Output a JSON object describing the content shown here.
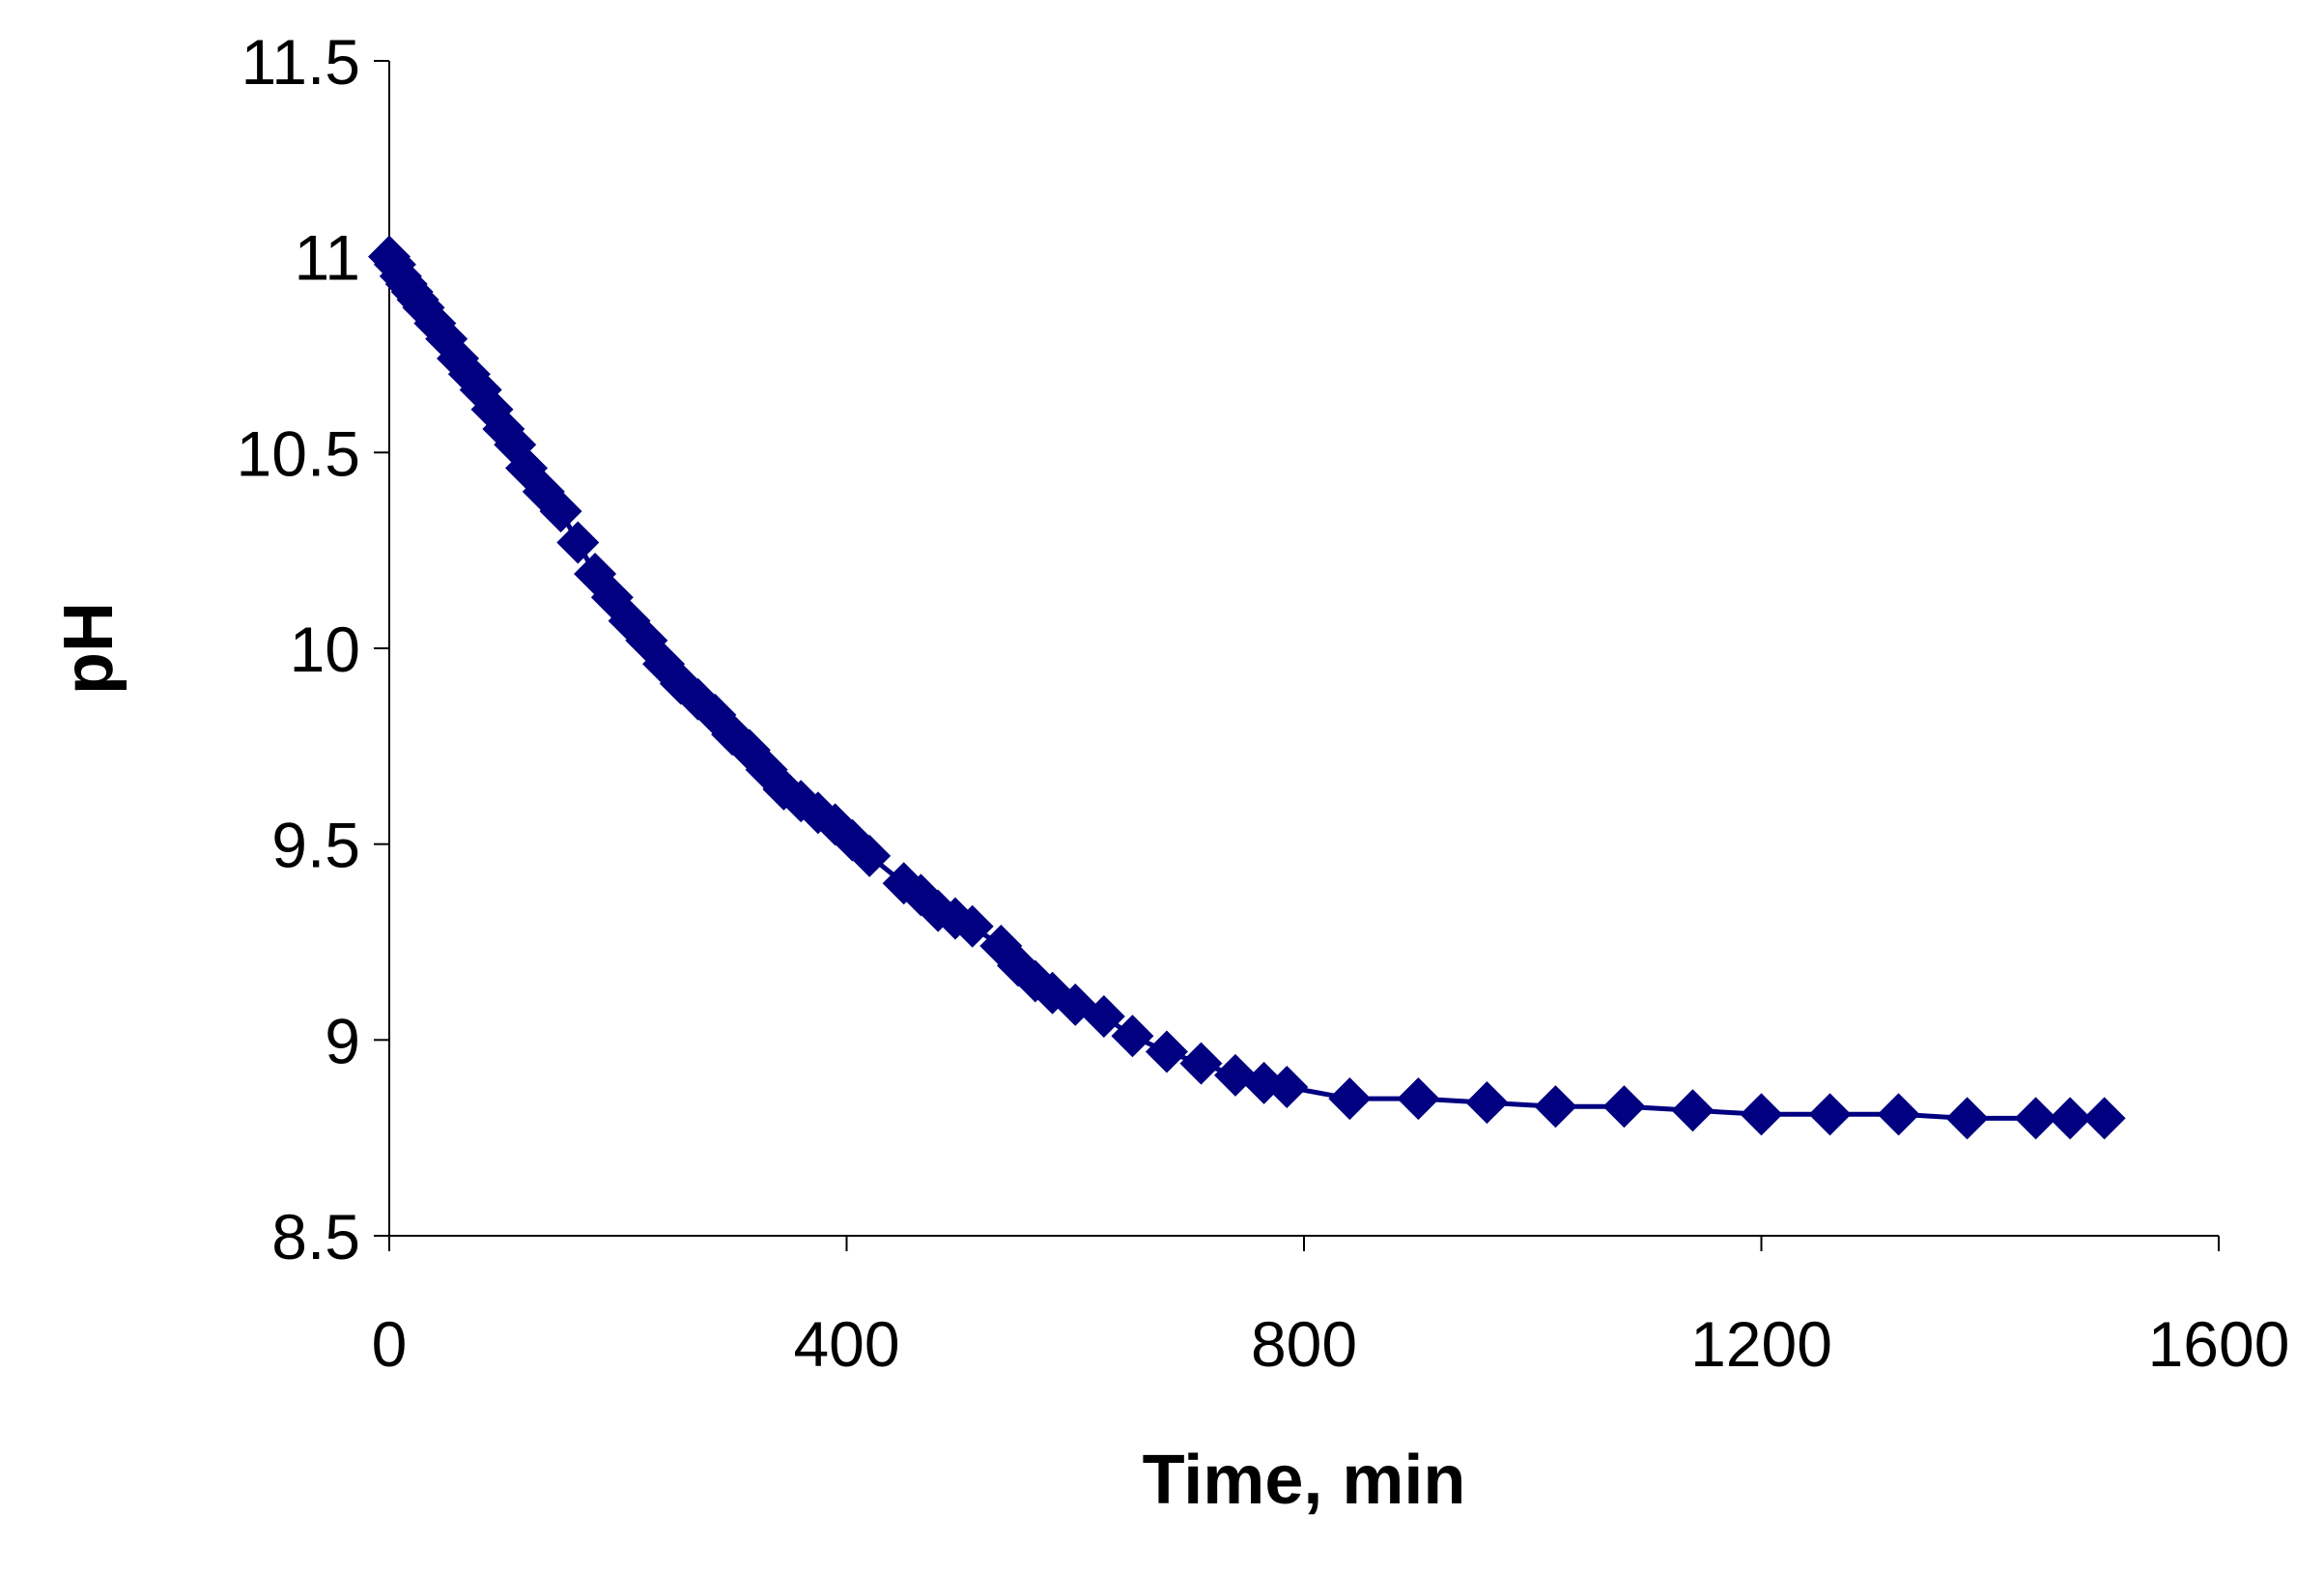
{
  "chart_data": {
    "type": "line",
    "title": "",
    "xlabel": "Time, min",
    "ylabel": "pH",
    "xlim": [
      0,
      1600
    ],
    "ylim": [
      8.5,
      11.5
    ],
    "x_ticks": [
      0,
      400,
      800,
      1200,
      1600
    ],
    "x_tick_labels": [
      "0",
      "400",
      "800",
      "1200",
      "1600"
    ],
    "y_ticks": [
      8.5,
      9,
      9.5,
      10,
      10.5,
      11,
      11.5
    ],
    "y_tick_labels": [
      "8.5",
      "9",
      "9.5",
      "10",
      "10.5",
      "11",
      "11.5"
    ],
    "grid": false,
    "legend": "none",
    "marker": "diamond",
    "colors": {
      "series": "#000080"
    },
    "series": [
      {
        "x": [
          0,
          5,
          10,
          15,
          20,
          25,
          30,
          40,
          50,
          60,
          70,
          80,
          90,
          100,
          110,
          120,
          135,
          150,
          165,
          180,
          195,
          210,
          225,
          240,
          255,
          270,
          285,
          300,
          315,
          330,
          345,
          360,
          375,
          390,
          405,
          420,
          450,
          465,
          480,
          495,
          510,
          535,
          550,
          565,
          580,
          600,
          625,
          650,
          680,
          710,
          740,
          765,
          785,
          840,
          900,
          960,
          1020,
          1080,
          1140,
          1200,
          1260,
          1320,
          1380,
          1440,
          1470,
          1500
        ],
        "y": [
          11.0,
          10.98,
          10.95,
          10.93,
          10.91,
          10.89,
          10.87,
          10.83,
          10.79,
          10.74,
          10.7,
          10.66,
          10.61,
          10.56,
          10.52,
          10.46,
          10.4,
          10.35,
          10.27,
          10.19,
          10.13,
          10.07,
          10.02,
          9.96,
          9.91,
          9.87,
          9.83,
          9.78,
          9.74,
          9.69,
          9.64,
          9.61,
          9.58,
          9.55,
          9.51,
          9.47,
          9.4,
          9.37,
          9.33,
          9.31,
          9.29,
          9.24,
          9.19,
          9.15,
          9.12,
          9.09,
          9.06,
          9.01,
          8.97,
          8.94,
          8.91,
          8.89,
          8.88,
          8.85,
          8.85,
          8.84,
          8.83,
          8.83,
          8.82,
          8.81,
          8.81,
          8.81,
          8.8,
          8.8,
          8.8,
          8.8
        ]
      }
    ]
  }
}
